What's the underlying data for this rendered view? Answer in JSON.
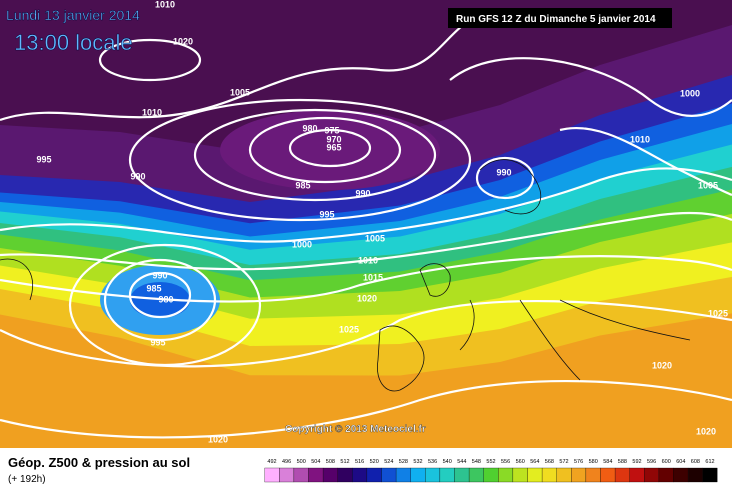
{
  "header": {
    "date": "Lundi 13 janvier 2014",
    "time": "13:00 locale",
    "run": "Run GFS 12 Z du Dimanche 5 janvier 2014"
  },
  "copyright": "Copyright © 2013 Meteociel.fr",
  "footer": {
    "title": "Géop. Z500 & pression au sol",
    "lead": "(+ 192h)"
  },
  "isobar_labels": [
    1010,
    1020,
    1005,
    1010,
    995,
    990,
    980,
    975,
    970,
    965,
    985,
    990,
    995,
    1000,
    1005,
    1010,
    1015,
    1020,
    1025,
    990,
    985,
    980,
    995,
    1020,
    990,
    1000,
    1010,
    1005,
    1025,
    1020,
    1020
  ],
  "color_scale": [
    492,
    496,
    500,
    504,
    508,
    512,
    516,
    520,
    524,
    528,
    532,
    536,
    540,
    544,
    548,
    552,
    556,
    560,
    564,
    568,
    572,
    576,
    580,
    584,
    588,
    592,
    596,
    600,
    604,
    608,
    612
  ]
}
